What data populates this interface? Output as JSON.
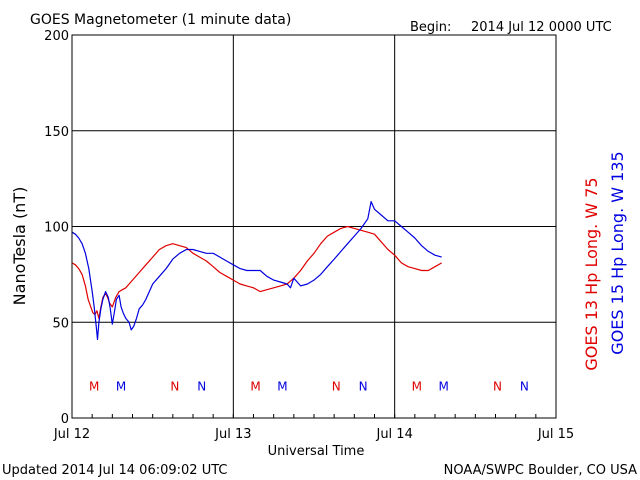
{
  "header": {
    "title": "GOES Magnetometer (1 minute data)",
    "begin_label": "Begin:",
    "begin_value": "2014 Jul 12 0000 UTC"
  },
  "footer": {
    "updated": "Updated 2014 Jul 14 06:09:02 UTC",
    "credit": "NOAA/SWPC Boulder, CO USA"
  },
  "chart_data": {
    "type": "line",
    "ylabel": "NanoTesla (nT)",
    "xlabel": "Universal Time",
    "ylim": [
      0,
      200
    ],
    "xlim": [
      0,
      72
    ],
    "x_unit": "hours since begin",
    "yticks": [
      0,
      50,
      100,
      150,
      200
    ],
    "xticks": [
      {
        "x": 0,
        "label": "Jul 12"
      },
      {
        "x": 24,
        "label": "Jul 13"
      },
      {
        "x": 48,
        "label": "Jul 14"
      },
      {
        "x": 72,
        "label": "Jul 15"
      }
    ],
    "grid": true,
    "legend_placement": "right (vertical)",
    "colors": {
      "goes13": "#e00000",
      "goes15": "#0000e0"
    },
    "legend": [
      {
        "sat": "GOES 13",
        "comp": "Hp",
        "lon": "Long. W 75",
        "color": "#e00000"
      },
      {
        "sat": "GOES 15",
        "comp": "Hp",
        "lon": "Long. W 135",
        "color": "#0000e0"
      }
    ],
    "series": [
      {
        "name": "GOES 13 Hp",
        "color": "#e00000",
        "points": [
          [
            0,
            81
          ],
          [
            0.5,
            80
          ],
          [
            1,
            78
          ],
          [
            1.5,
            75
          ],
          [
            2,
            69
          ],
          [
            2.4,
            62
          ],
          [
            2.8,
            58
          ],
          [
            3.1,
            55
          ],
          [
            3.4,
            54
          ],
          [
            3.7,
            56
          ],
          [
            4,
            52
          ],
          [
            4.3,
            58
          ],
          [
            4.6,
            63
          ],
          [
            5,
            65
          ],
          [
            5.3,
            63
          ],
          [
            5.6,
            60
          ],
          [
            6,
            58
          ],
          [
            6.5,
            63
          ],
          [
            7,
            66
          ],
          [
            7.5,
            67
          ],
          [
            8,
            68
          ],
          [
            8.5,
            70
          ],
          [
            9,
            72
          ],
          [
            10,
            76
          ],
          [
            11,
            80
          ],
          [
            12,
            84
          ],
          [
            13,
            88
          ],
          [
            14,
            90
          ],
          [
            15,
            91
          ],
          [
            16,
            90
          ],
          [
            17,
            89
          ],
          [
            18,
            86
          ],
          [
            19,
            84
          ],
          [
            20,
            82
          ],
          [
            21,
            79
          ],
          [
            22,
            76
          ],
          [
            23,
            74
          ],
          [
            24,
            72
          ],
          [
            25,
            70
          ],
          [
            26,
            69
          ],
          [
            27,
            68
          ],
          [
            28,
            66
          ],
          [
            29,
            67
          ],
          [
            30,
            68
          ],
          [
            31,
            69
          ],
          [
            32,
            70
          ],
          [
            33,
            73
          ],
          [
            34,
            77
          ],
          [
            35,
            82
          ],
          [
            36,
            86
          ],
          [
            37,
            91
          ],
          [
            38,
            95
          ],
          [
            39,
            97
          ],
          [
            40,
            99
          ],
          [
            41,
            100
          ],
          [
            42,
            99
          ],
          [
            43,
            98
          ],
          [
            44,
            97
          ],
          [
            45,
            96
          ],
          [
            46,
            92
          ],
          [
            47,
            88
          ],
          [
            48,
            85
          ],
          [
            49,
            81
          ],
          [
            50,
            79
          ],
          [
            51,
            78
          ],
          [
            52,
            77
          ],
          [
            53,
            77
          ],
          [
            54,
            79
          ],
          [
            55,
            81
          ]
        ]
      },
      {
        "name": "GOES 15 Hp",
        "color": "#0000e0",
        "points": [
          [
            0,
            97
          ],
          [
            0.5,
            96
          ],
          [
            1,
            94
          ],
          [
            1.5,
            91
          ],
          [
            2,
            86
          ],
          [
            2.5,
            78
          ],
          [
            3,
            66
          ],
          [
            3.3,
            58
          ],
          [
            3.6,
            48
          ],
          [
            3.8,
            41
          ],
          [
            4,
            50
          ],
          [
            4.3,
            57
          ],
          [
            4.6,
            62
          ],
          [
            5,
            66
          ],
          [
            5.4,
            63
          ],
          [
            5.7,
            57
          ],
          [
            6,
            49
          ],
          [
            6.3,
            55
          ],
          [
            6.6,
            62
          ],
          [
            7,
            64
          ],
          [
            7.3,
            58
          ],
          [
            7.6,
            55
          ],
          [
            8,
            52
          ],
          [
            8.5,
            50
          ],
          [
            8.8,
            46
          ],
          [
            9.2,
            48
          ],
          [
            9.6,
            52
          ],
          [
            10,
            57
          ],
          [
            10.5,
            59
          ],
          [
            11,
            62
          ],
          [
            11.5,
            66
          ],
          [
            12,
            70
          ],
          [
            13,
            74
          ],
          [
            14,
            78
          ],
          [
            15,
            83
          ],
          [
            16,
            86
          ],
          [
            17,
            88
          ],
          [
            18,
            88
          ],
          [
            19,
            87
          ],
          [
            20,
            86
          ],
          [
            21,
            86
          ],
          [
            22,
            84
          ],
          [
            23,
            82
          ],
          [
            24,
            80
          ],
          [
            25,
            78
          ],
          [
            26,
            77
          ],
          [
            27,
            77
          ],
          [
            28,
            77
          ],
          [
            29,
            74
          ],
          [
            30,
            72
          ],
          [
            31,
            71
          ],
          [
            32,
            70
          ],
          [
            32.5,
            68
          ],
          [
            33,
            73
          ],
          [
            33.5,
            71
          ],
          [
            34,
            69
          ],
          [
            35,
            70
          ],
          [
            36,
            72
          ],
          [
            37,
            75
          ],
          [
            38,
            79
          ],
          [
            39,
            83
          ],
          [
            40,
            87
          ],
          [
            41,
            91
          ],
          [
            42,
            95
          ],
          [
            43,
            99
          ],
          [
            44,
            104
          ],
          [
            44.5,
            113
          ],
          [
            45,
            109
          ],
          [
            46,
            106
          ],
          [
            47,
            103
          ],
          [
            48,
            103
          ],
          [
            49,
            100
          ],
          [
            50,
            97
          ],
          [
            51,
            94
          ],
          [
            52,
            90
          ],
          [
            53,
            87
          ],
          [
            54,
            85
          ],
          [
            55,
            84
          ]
        ]
      }
    ],
    "markers": [
      {
        "x": 3.3,
        "label": "M",
        "color": "#e00000"
      },
      {
        "x": 7.3,
        "label": "M",
        "color": "#0000e0"
      },
      {
        "x": 15.3,
        "label": "N",
        "color": "#e00000"
      },
      {
        "x": 19.3,
        "label": "N",
        "color": "#0000e0"
      },
      {
        "x": 27.3,
        "label": "M",
        "color": "#e00000"
      },
      {
        "x": 31.3,
        "label": "M",
        "color": "#0000e0"
      },
      {
        "x": 39.3,
        "label": "N",
        "color": "#e00000"
      },
      {
        "x": 43.3,
        "label": "N",
        "color": "#0000e0"
      },
      {
        "x": 51.3,
        "label": "M",
        "color": "#e00000"
      },
      {
        "x": 55.3,
        "label": "M",
        "color": "#0000e0"
      },
      {
        "x": 63.3,
        "label": "N",
        "color": "#e00000"
      },
      {
        "x": 67.3,
        "label": "N",
        "color": "#0000e0"
      }
    ],
    "marker_level": 17
  }
}
